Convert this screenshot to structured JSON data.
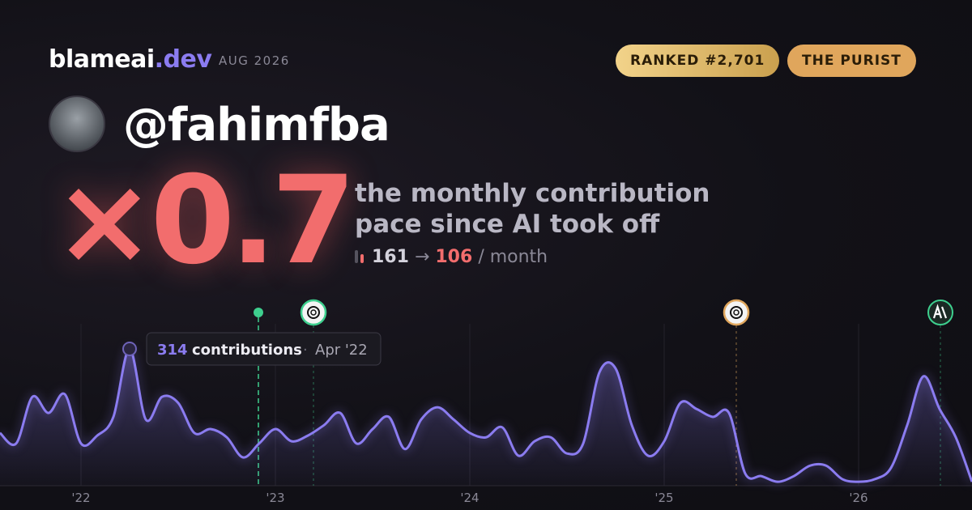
{
  "header": {
    "brand": "blameai",
    "brand_tld": ".dev",
    "date": "AUG 2026",
    "badges": [
      "RANKED #2,701",
      "THE PURIST"
    ]
  },
  "profile": {
    "handle": "@fahimfba"
  },
  "headline": {
    "multiplier": "×0.7",
    "caption_lines": [
      "the monthly contribution",
      "pace since AI took off"
    ],
    "before": "161",
    "arrow": "→",
    "after": "106",
    "unit": "/ month"
  },
  "tooltip": {
    "label": "contributions",
    "separator": "·",
    "date": "Apr '22"
  },
  "chart_data": {
    "type": "area",
    "color": "#8b7cf0",
    "categories": [
      null,
      null,
      null,
      null,
      null,
      "'22",
      null,
      null,
      null,
      null,
      null,
      null,
      null,
      null,
      null,
      null,
      null,
      "'23",
      null,
      null,
      null,
      null,
      null,
      null,
      null,
      null,
      null,
      null,
      null,
      "'24",
      null,
      null,
      null,
      null,
      null,
      null,
      null,
      null,
      null,
      null,
      null,
      "'25",
      null,
      null,
      null,
      null,
      null,
      null,
      null,
      null,
      null,
      null,
      null,
      "'26",
      null,
      null,
      null,
      null,
      null,
      null,
      null
    ],
    "values": [
      121,
      97,
      204,
      167,
      210,
      97,
      115,
      158,
      314,
      152,
      204,
      190,
      121,
      130,
      111,
      65,
      97,
      130,
      102,
      115,
      139,
      167,
      97,
      130,
      158,
      84,
      152,
      180,
      152,
      121,
      111,
      134,
      69,
      102,
      111,
      74,
      97,
      260,
      269,
      139,
      69,
      102,
      190,
      176,
      158,
      167,
      28,
      22,
      9,
      22,
      46,
      46,
      15,
      9,
      15,
      41,
      139,
      251,
      176,
      111,
      9
    ],
    "ylim": [
      0,
      340
    ]
  }
}
